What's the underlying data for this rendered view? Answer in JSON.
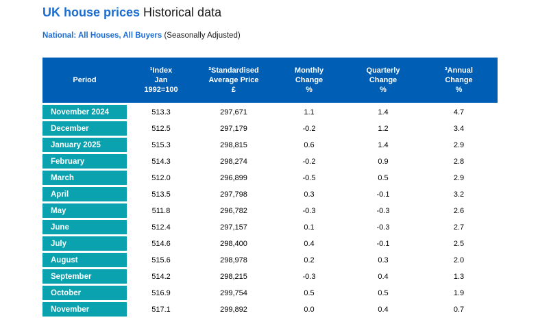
{
  "page": {
    "title_highlight": "UK house prices",
    "title_rest": " Historical data",
    "subtitle_bold": "National: All Houses, All Buyers",
    "subtitle_rest": " (Seasonally Adjusted)"
  },
  "colors": {
    "header_blue": "#005EB4",
    "teal": "#0AA2AF",
    "title_blue": "#1C6DD2"
  },
  "table": {
    "columns": [
      {
        "id": "period",
        "label": "Period"
      },
      {
        "id": "index",
        "label": "¹Index\nJan\n1992=100"
      },
      {
        "id": "price",
        "label": "²Standardised\nAverage Price\n£"
      },
      {
        "id": "monthly",
        "label": "Monthly\nChange\n%"
      },
      {
        "id": "quarterly",
        "label": "Quarterly\nChange\n%"
      },
      {
        "id": "annual",
        "label": "³Annual\nChange\n%"
      }
    ],
    "rows": [
      {
        "period": "November 2024",
        "index": "513.3",
        "price": "297,671",
        "monthly": "1.1",
        "quarterly": "1.4",
        "annual": "4.7"
      },
      {
        "period": "December",
        "index": "512.5",
        "price": "297,179",
        "monthly": "-0.2",
        "quarterly": "1.2",
        "annual": "3.4"
      },
      {
        "period": "January 2025",
        "index": "515.3",
        "price": "298,815",
        "monthly": "0.6",
        "quarterly": "1.4",
        "annual": "2.9"
      },
      {
        "period": "February",
        "index": "514.3",
        "price": "298,274",
        "monthly": "-0.2",
        "quarterly": "0.9",
        "annual": "2.8"
      },
      {
        "period": "March",
        "index": "512.0",
        "price": "296,899",
        "monthly": "-0.5",
        "quarterly": "0.5",
        "annual": "2.9"
      },
      {
        "period": "April",
        "index": "513.5",
        "price": "297,798",
        "monthly": "0.3",
        "quarterly": "-0.1",
        "annual": "3.2"
      },
      {
        "period": "May",
        "index": "511.8",
        "price": "296,782",
        "monthly": "-0.3",
        "quarterly": "-0.3",
        "annual": "2.6"
      },
      {
        "period": "June",
        "index": "512.4",
        "price": "297,157",
        "monthly": "0.1",
        "quarterly": "-0.3",
        "annual": "2.7"
      },
      {
        "period": "July",
        "index": "514.6",
        "price": "298,400",
        "monthly": "0.4",
        "quarterly": "-0.1",
        "annual": "2.5"
      },
      {
        "period": "August",
        "index": "515.6",
        "price": "298,978",
        "monthly": "0.2",
        "quarterly": "0.3",
        "annual": "2.0"
      },
      {
        "period": "September",
        "index": "514.2",
        "price": "298,215",
        "monthly": "-0.3",
        "quarterly": "0.4",
        "annual": "1.3"
      },
      {
        "period": "October",
        "index": "516.9",
        "price": "299,754",
        "monthly": "0.5",
        "quarterly": "0.5",
        "annual": "1.9"
      },
      {
        "period": "November",
        "index": "517.1",
        "price": "299,892",
        "monthly": "0.0",
        "quarterly": "0.4",
        "annual": "0.7"
      }
    ]
  },
  "chart_data": {
    "type": "table",
    "title": "UK house prices Historical data",
    "subtitle": "National: All Houses, All Buyers (Seasonally Adjusted)",
    "columns": [
      "Period",
      "Index Jan 1992=100",
      "Standardised Average Price £",
      "Monthly Change %",
      "Quarterly Change %",
      "Annual Change %"
    ],
    "rows": [
      [
        "November 2024",
        513.3,
        297671,
        1.1,
        1.4,
        4.7
      ],
      [
        "December",
        512.5,
        297179,
        -0.2,
        1.2,
        3.4
      ],
      [
        "January 2025",
        515.3,
        298815,
        0.6,
        1.4,
        2.9
      ],
      [
        "February",
        514.3,
        298274,
        -0.2,
        0.9,
        2.8
      ],
      [
        "March",
        512.0,
        296899,
        -0.5,
        0.5,
        2.9
      ],
      [
        "April",
        513.5,
        297798,
        0.3,
        -0.1,
        3.2
      ],
      [
        "May",
        511.8,
        296782,
        -0.3,
        -0.3,
        2.6
      ],
      [
        "June",
        512.4,
        297157,
        0.1,
        -0.3,
        2.7
      ],
      [
        "July",
        514.6,
        298400,
        0.4,
        -0.1,
        2.5
      ],
      [
        "August",
        515.6,
        298978,
        0.2,
        0.3,
        2.0
      ],
      [
        "September",
        514.2,
        298215,
        -0.3,
        0.4,
        1.3
      ],
      [
        "October",
        516.9,
        299754,
        0.5,
        0.5,
        1.9
      ],
      [
        "November",
        517.1,
        299892,
        0.0,
        0.4,
        0.7
      ]
    ]
  }
}
